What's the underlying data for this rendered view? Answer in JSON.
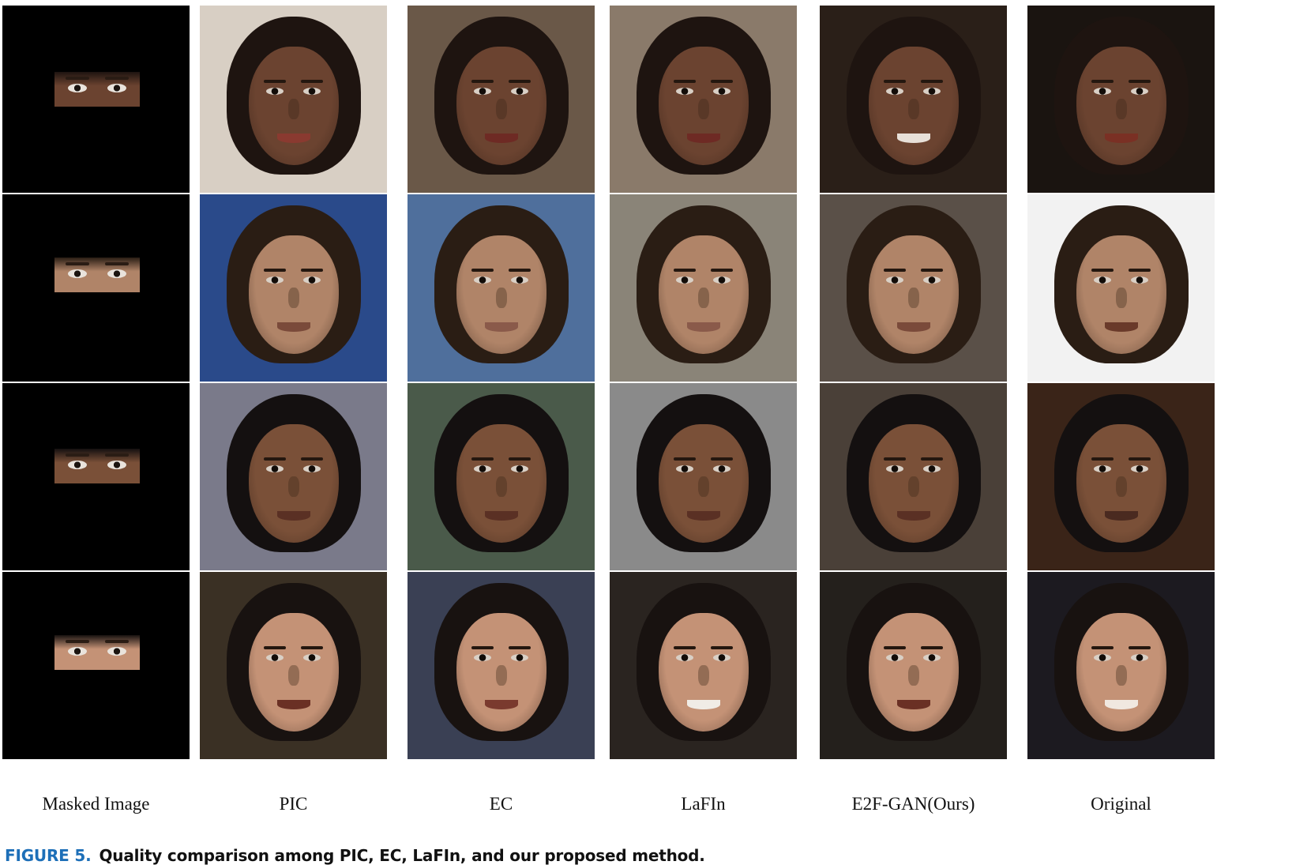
{
  "columns": [
    "Masked Image",
    "PIC",
    "EC",
    "LaFIn",
    "E2F-GAN(Ours)",
    "Original"
  ],
  "rows": [
    {
      "skin": "#6b4330",
      "hair": "#1e1410",
      "bgs": [
        "#000000",
        "#d8cfc4",
        "#6a5848",
        "#8a7a6a",
        "#2a1f18",
        "#1a1410"
      ],
      "mouths": [
        "#c88a78",
        "#8a3a30",
        "#6e2a24",
        "#6e2a24",
        "#e8e0d8",
        "#7a3024"
      ]
    },
    {
      "skin": "#b08468",
      "hair": "#2a1d14",
      "bgs": [
        "#000000",
        "#2a4a8a",
        "#4f6f9c",
        "#8a8478",
        "#5a5048",
        "#f2f2f2"
      ],
      "mouths": [
        "#8a5a4a",
        "#7a4a3a",
        "#8a5a4a",
        "#8a5a4a",
        "#7a4a3a",
        "#6a3a2a"
      ]
    },
    {
      "skin": "#7a5038",
      "hair": "#141010",
      "bgs": [
        "#000000",
        "#7a7a8a",
        "#4a5a4a",
        "#8a8a8a",
        "#4a4038",
        "#3a2418"
      ],
      "mouths": [
        "#5a3024",
        "#5a3024",
        "#5a3024",
        "#5a3024",
        "#5a3024",
        "#4a2a20"
      ]
    },
    {
      "skin": "#c49276",
      "hair": "#181210",
      "bgs": [
        "#000000",
        "#3a3024",
        "#3a4054",
        "#2a2420",
        "#24201c",
        "#1c1a20"
      ],
      "mouths": [
        "#6a3024",
        "#6a3024",
        "#7a3a2e",
        "#f0ece6",
        "#6a3024",
        "#f0e8e0"
      ]
    }
  ],
  "caption": {
    "label": "FIGURE 5.",
    "text": "Quality comparison among PIC, EC, LaFIn, and our proposed method."
  }
}
